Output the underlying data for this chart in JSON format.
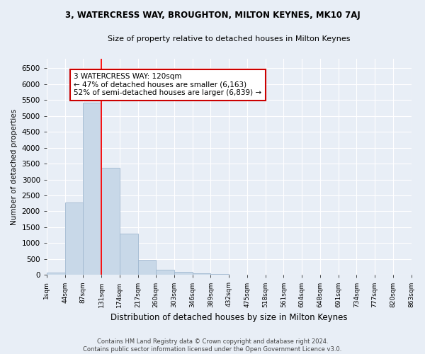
{
  "title1": "3, WATERCRESS WAY, BROUGHTON, MILTON KEYNES, MK10 7AJ",
  "title2": "Size of property relative to detached houses in Milton Keynes",
  "xlabel": "Distribution of detached houses by size in Milton Keynes",
  "ylabel": "Number of detached properties",
  "footnote": "Contains HM Land Registry data © Crown copyright and database right 2024.\nContains public sector information licensed under the Open Government Licence v3.0.",
  "bin_labels": [
    "1sqm",
    "44sqm",
    "87sqm",
    "131sqm",
    "174sqm",
    "217sqm",
    "260sqm",
    "303sqm",
    "346sqm",
    "389sqm",
    "432sqm",
    "475sqm",
    "518sqm",
    "561sqm",
    "604sqm",
    "648sqm",
    "691sqm",
    "734sqm",
    "777sqm",
    "820sqm",
    "863sqm"
  ],
  "bar_values": [
    70,
    2270,
    5420,
    3380,
    1290,
    480,
    170,
    90,
    55,
    30,
    10,
    5,
    0,
    0,
    0,
    0,
    0,
    0,
    0,
    0
  ],
  "bar_color": "#c8d8e8",
  "bar_edge_color": "#a0b8d0",
  "red_line_x": 3.0,
  "annotation_text": "3 WATERCRESS WAY: 120sqm\n← 47% of detached houses are smaller (6,163)\n52% of semi-detached houses are larger (6,839) →",
  "ylim": [
    0,
    6800
  ],
  "yticks": [
    0,
    500,
    1000,
    1500,
    2000,
    2500,
    3000,
    3500,
    4000,
    4500,
    5000,
    5500,
    6000,
    6500
  ],
  "bg_color": "#e8eef6",
  "grid_color": "#ffffff",
  "annotation_box_color": "#ffffff",
  "annotation_box_edge": "#cc0000"
}
